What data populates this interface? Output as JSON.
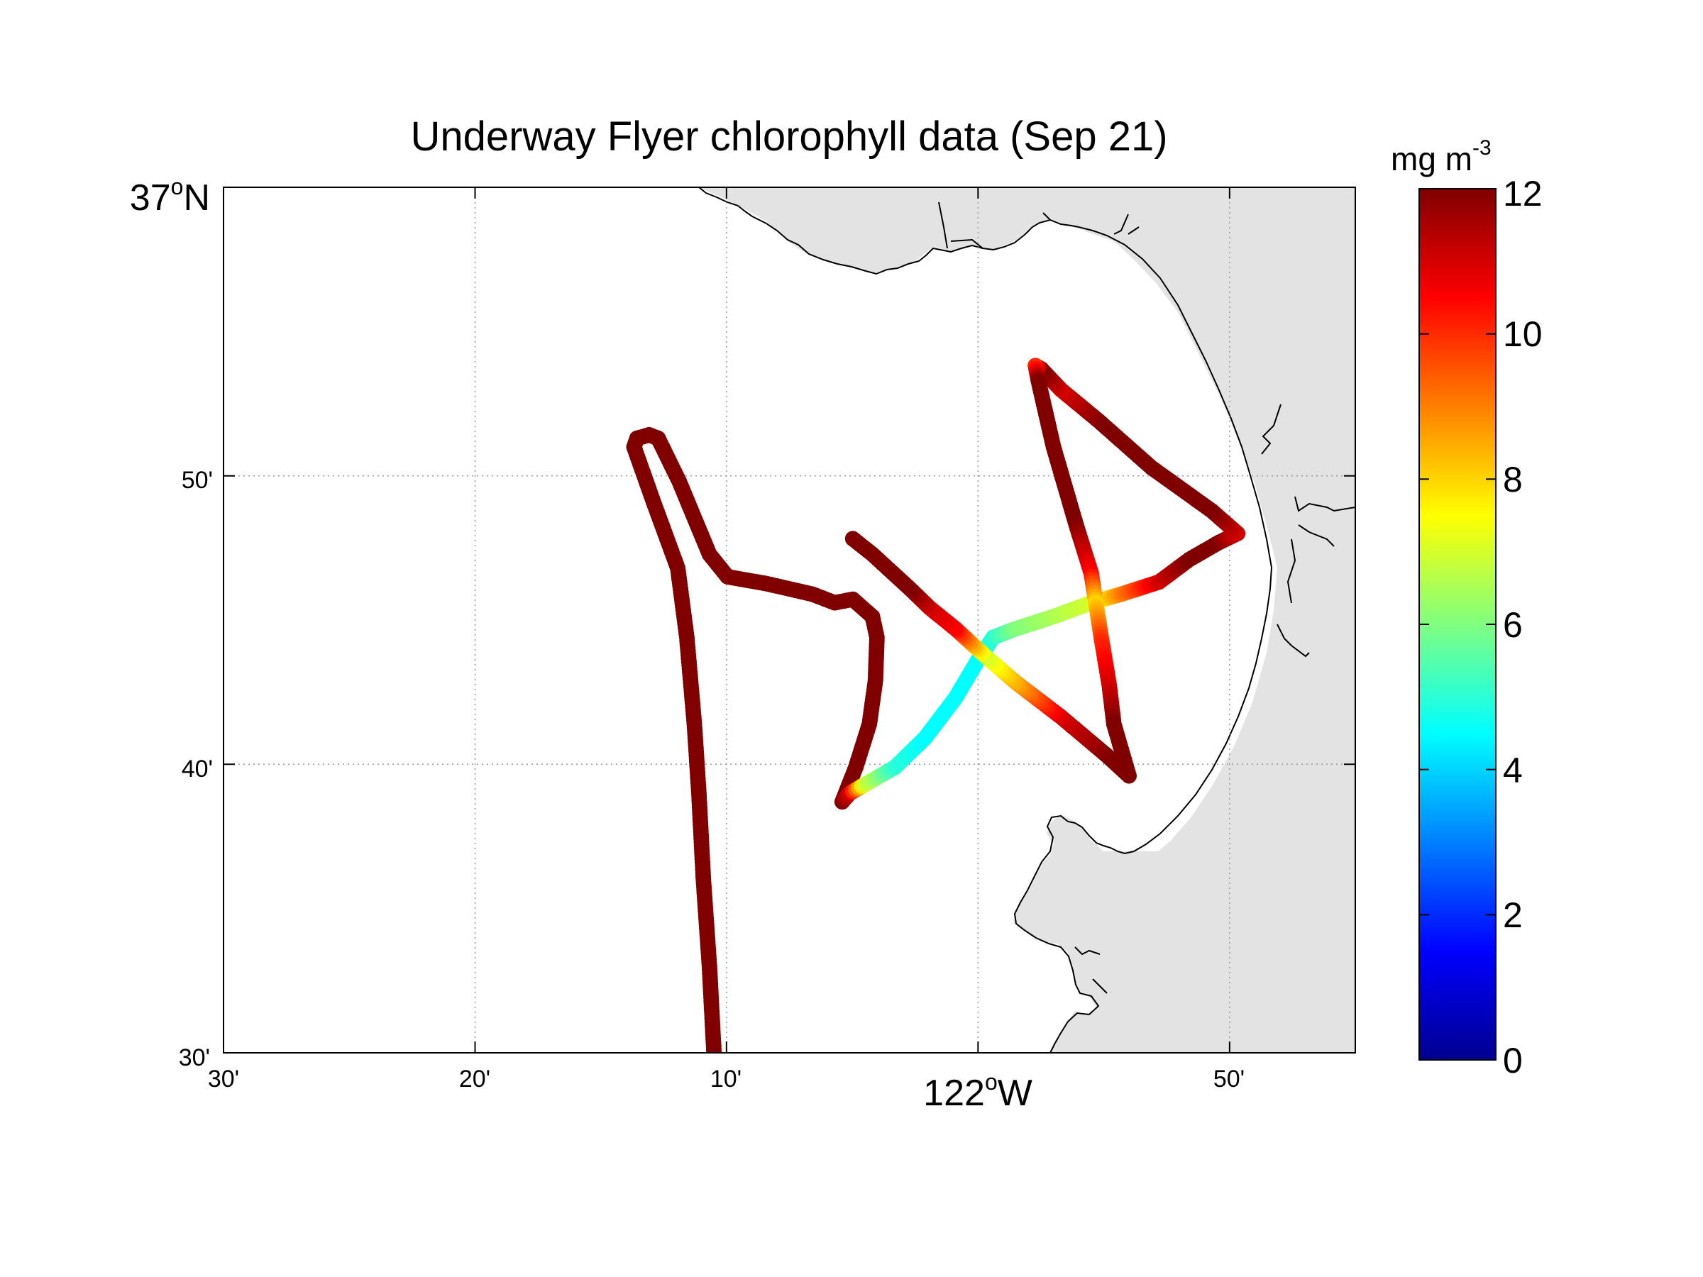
{
  "title": "Underway Flyer chlorophyll data (Sep 21)",
  "colorbar": {
    "unit_base": "mg m",
    "unit_exp": "-3",
    "ticks": [
      "0",
      "2",
      "4",
      "6",
      "8",
      "10",
      "12"
    ],
    "min": 0,
    "max": 12,
    "colormap": "jet"
  },
  "axes": {
    "lon_range": [
      -122.5,
      -121.75
    ],
    "lat_range": [
      36.5,
      37.0
    ],
    "grid": true,
    "x_ticks": [
      {
        "value": -122.5,
        "label": "30'"
      },
      {
        "value": -122.3333,
        "label": "20'"
      },
      {
        "value": -122.1667,
        "label": "10'"
      },
      {
        "value": -122.0,
        "label_base": "122",
        "label_sup": "o",
        "label_tail": "W"
      },
      {
        "value": -121.8333,
        "label": "50'"
      }
    ],
    "y_ticks": [
      {
        "value": 36.5,
        "label": "30'"
      },
      {
        "value": 36.6667,
        "label": "40'"
      },
      {
        "value": 36.8333,
        "label": "50'"
      },
      {
        "value": 37.0,
        "label_base": "37",
        "label_sup": "o",
        "label_tail": "N"
      }
    ]
  },
  "colors": {
    "land": "#e3e3e3",
    "coast": "#000000",
    "grid": "#9a9a9a"
  },
  "chart_data": {
    "type": "scatter",
    "variable": "chlorophyll",
    "unit": "mg m-3",
    "tracks": [
      {
        "points": [
          [
            -122.175,
            36.5,
            12
          ],
          [
            -122.178,
            36.55,
            12
          ],
          [
            -122.182,
            36.6,
            12
          ],
          [
            -122.185,
            36.65,
            12
          ],
          [
            -122.188,
            36.69,
            12
          ],
          [
            -122.193,
            36.74,
            12
          ],
          [
            -122.199,
            36.78,
            12
          ],
          [
            -122.215,
            36.818,
            12
          ],
          [
            -122.228,
            36.85,
            12
          ],
          [
            -122.226,
            36.855,
            12
          ],
          [
            -122.218,
            36.857,
            12
          ],
          [
            -122.212,
            36.855,
            12
          ],
          [
            -122.198,
            36.83,
            12
          ],
          [
            -122.178,
            36.788,
            12
          ],
          [
            -122.166,
            36.775,
            12
          ],
          [
            -122.14,
            36.771,
            12
          ],
          [
            -122.11,
            36.765,
            12
          ],
          [
            -122.095,
            36.76,
            12
          ],
          [
            -122.083,
            36.762,
            12
          ],
          [
            -122.07,
            36.752,
            12
          ],
          [
            -122.067,
            36.74,
            12
          ],
          [
            -122.068,
            36.715,
            12
          ],
          [
            -122.072,
            36.69,
            12
          ],
          [
            -122.081,
            36.665,
            12
          ],
          [
            -122.09,
            36.645,
            12
          ],
          [
            -122.085,
            36.65,
            11
          ],
          [
            -122.075,
            36.655,
            7
          ],
          [
            -122.055,
            36.665,
            5
          ],
          [
            -122.035,
            36.682,
            4.5
          ],
          [
            -122.015,
            36.705,
            4.5
          ],
          [
            -122.0,
            36.727,
            4.5
          ],
          [
            -121.99,
            36.74,
            5
          ],
          [
            -121.975,
            36.745,
            6
          ],
          [
            -121.95,
            36.752,
            6.5
          ],
          [
            -121.925,
            36.76,
            7
          ],
          [
            -121.905,
            36.765,
            9
          ],
          [
            -121.88,
            36.772,
            11
          ],
          [
            -121.86,
            36.785,
            12
          ],
          [
            -121.84,
            36.795,
            12
          ],
          [
            -121.828,
            36.8,
            11
          ],
          [
            -121.845,
            36.813,
            12
          ],
          [
            -121.885,
            36.838,
            12
          ],
          [
            -121.92,
            36.865,
            12
          ],
          [
            -121.945,
            36.883,
            11
          ],
          [
            -121.958,
            36.895,
            12
          ],
          [
            -121.962,
            36.897,
            10
          ],
          [
            -121.96,
            36.888,
            12
          ],
          [
            -121.95,
            36.85,
            12
          ],
          [
            -121.935,
            36.805,
            12
          ],
          [
            -121.925,
            36.777,
            10.5
          ],
          [
            -121.922,
            36.76,
            8
          ],
          [
            -121.918,
            36.738,
            10
          ],
          [
            -121.913,
            36.712,
            11
          ],
          [
            -121.91,
            36.69,
            12
          ],
          [
            -121.9,
            36.66,
            12
          ],
          [
            -121.915,
            36.672,
            12
          ],
          [
            -121.945,
            36.694,
            11
          ],
          [
            -121.975,
            36.714,
            8.5
          ],
          [
            -121.995,
            36.729,
            7
          ],
          [
            -122.015,
            36.745,
            10.5
          ],
          [
            -122.032,
            36.757,
            11
          ],
          [
            -122.045,
            36.768,
            12
          ],
          [
            -122.07,
            36.788,
            12
          ],
          [
            -122.083,
            36.797,
            12
          ]
        ]
      }
    ]
  }
}
